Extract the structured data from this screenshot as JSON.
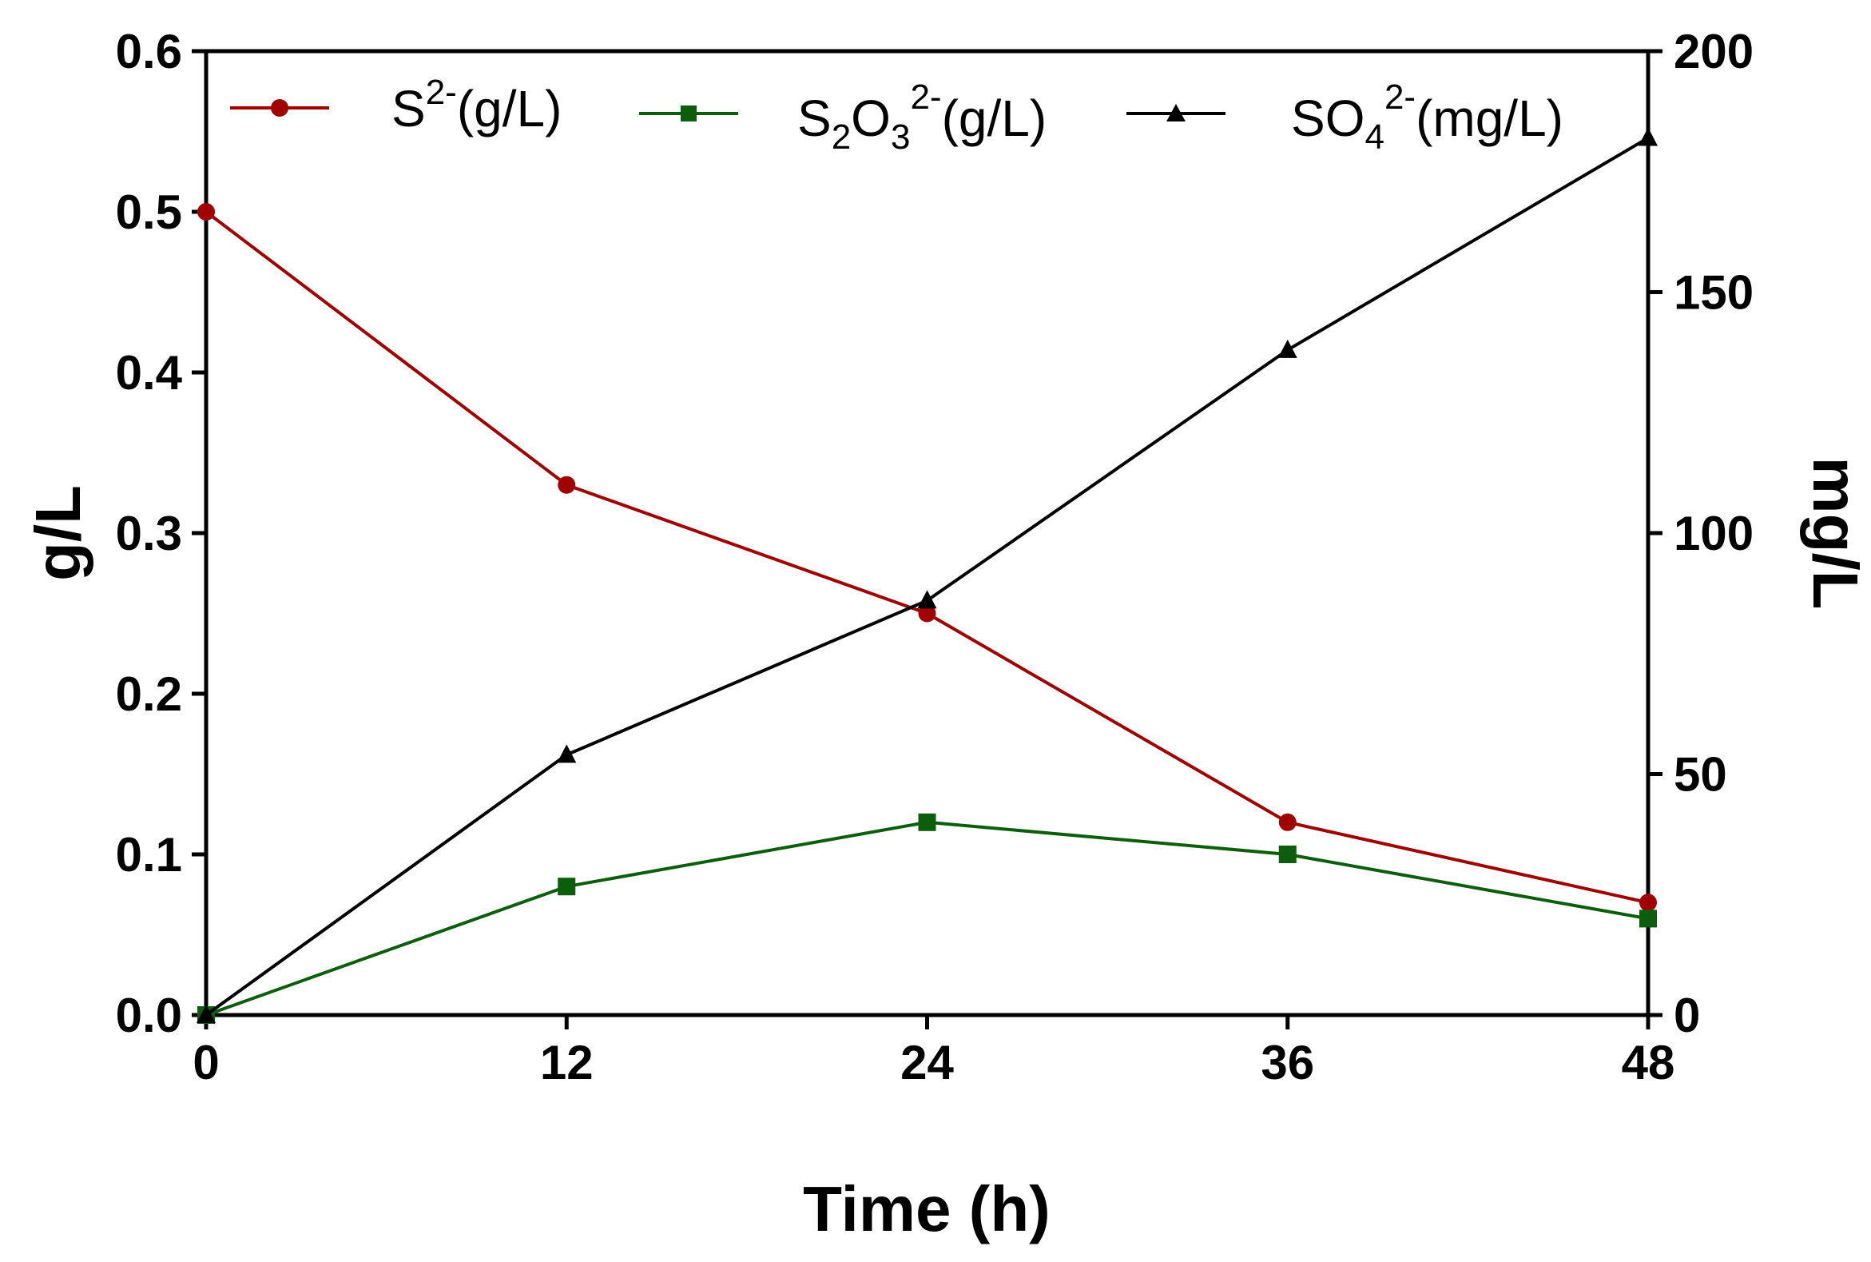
{
  "chart_data": {
    "type": "line",
    "x": [
      0,
      12,
      24,
      36,
      48
    ],
    "xlabel": "Time (h)",
    "xticks": [
      0,
      12,
      24,
      36,
      48
    ],
    "xlim": [
      0,
      48
    ],
    "ylabel_left": "g/L",
    "ylim_left": [
      0,
      0.6
    ],
    "yticks_left": [
      "0.0",
      "0.1",
      "0.2",
      "0.3",
      "0.4",
      "0.5",
      "0.6"
    ],
    "ylabel_right": "mg/L",
    "ylim_right": [
      0,
      200
    ],
    "yticks_right": [
      "0",
      "50",
      "100",
      "150",
      "200"
    ],
    "grid": false,
    "legend_position": "top",
    "series": [
      {
        "name": "S2-(g/L)",
        "legend": {
          "base": "S",
          "sup": "2-",
          "tail": "(g/L)"
        },
        "axis": "left",
        "marker": "circle",
        "color": "#a00000",
        "values": [
          0.5,
          0.33,
          0.25,
          0.12,
          0.07
        ]
      },
      {
        "name": "S2O32-(g/L)",
        "legend": {
          "base": "S",
          "sub1": "2",
          "mid": "O",
          "sub2": "3",
          "sup": "2-",
          "tail": "(g/L)"
        },
        "axis": "left",
        "marker": "square",
        "color": "#0c5e0c",
        "values": [
          0.0,
          0.08,
          0.12,
          0.1,
          0.06
        ]
      },
      {
        "name": "SO42-(mg/L)",
        "legend": {
          "base": "SO",
          "sub": "4",
          "sup": "2-",
          "tail": "(mg/L)"
        },
        "axis": "right",
        "marker": "triangle",
        "color": "#000000",
        "values": [
          0,
          54,
          86,
          138,
          182
        ]
      }
    ]
  }
}
